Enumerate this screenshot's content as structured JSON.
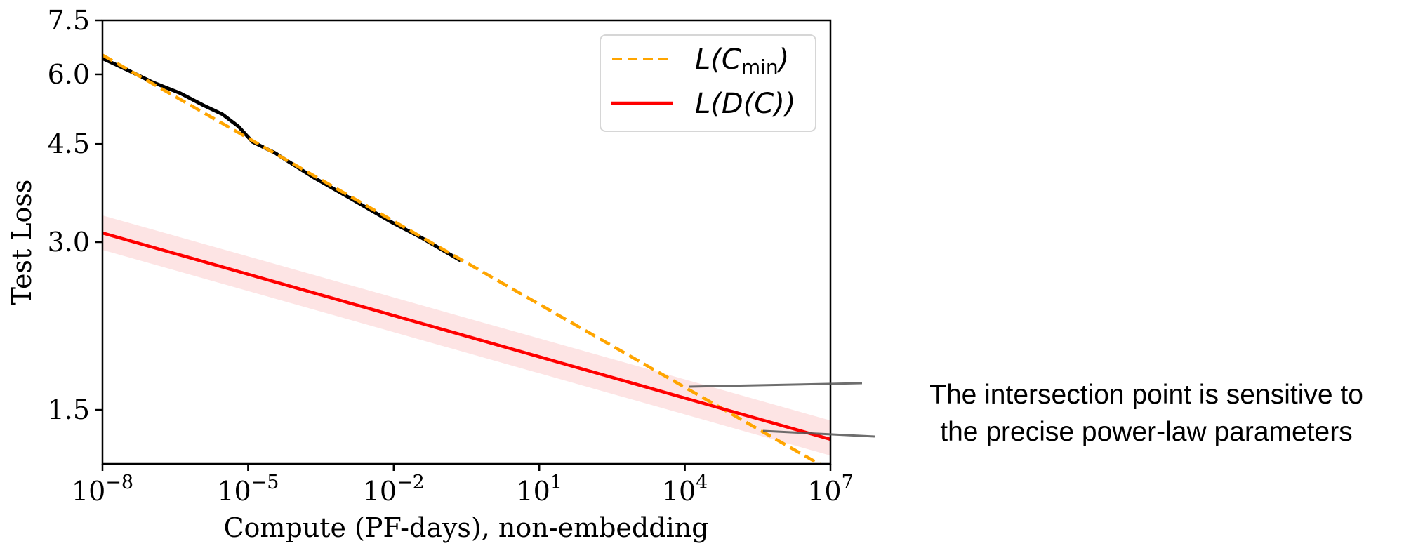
{
  "chart_data": {
    "type": "line",
    "title": "",
    "xlabel": "Compute (PF-days), non-embedding",
    "ylabel": "Test Loss",
    "xscale": "log",
    "yscale": "log",
    "xlim": [
      1e-08,
      10000000.0
    ],
    "ylim": [
      1.2,
      7.5
    ],
    "grid": false,
    "legend_position": "top-right",
    "x_ticks": [
      {
        "base": "10",
        "exp": "−8",
        "log10": -8
      },
      {
        "base": "10",
        "exp": "−5",
        "log10": -5
      },
      {
        "base": "10",
        "exp": "−2",
        "log10": -2
      },
      {
        "base": "10",
        "exp": "1",
        "log10": 1
      },
      {
        "base": "10",
        "exp": "4",
        "log10": 4
      },
      {
        "base": "10",
        "exp": "7",
        "log10": 7
      }
    ],
    "y_ticks": [
      {
        "value": 1.5,
        "label": "1.5"
      },
      {
        "value": 3.0,
        "label": "3.0"
      },
      {
        "value": 4.5,
        "label": "4.5"
      },
      {
        "value": 6.0,
        "label": "6.0"
      },
      {
        "value": 7.5,
        "label": "7.5"
      }
    ],
    "series": [
      {
        "name": "L(C_min)",
        "legend_main": "L(C",
        "legend_sub": "min",
        "legend_end": ")",
        "color": "#ffa500",
        "style": "dashed",
        "x": [
          1e-08,
          10000000.0
        ],
        "y": [
          6.5,
          1.168
        ]
      },
      {
        "name": "L(D(C))",
        "legend_main": "L(D(C))",
        "color": "#ff0000",
        "style": "solid",
        "x": [
          1e-08,
          10000000.0
        ],
        "y": [
          3.115,
          1.328
        ],
        "band_upper": [
          3.35,
          1.436
        ],
        "band_lower": [
          2.905,
          1.242
        ],
        "band_color": "#fde4e4"
      },
      {
        "color": "#000000",
        "style": "solid",
        "x": [
          1e-08,
          3.4e-08,
          1.07e-07,
          4e-07,
          1.2e-06,
          2.95e-06,
          6.3e-06,
          1.23e-05,
          3.7e-05,
          4.7e-05,
          0.000224,
          0.00132,
          0.0095,
          0.036,
          0.24
        ],
        "y": [
          6.41,
          6.1,
          5.81,
          5.55,
          5.28,
          5.09,
          4.84,
          4.54,
          4.33,
          4.27,
          3.92,
          3.59,
          3.25,
          3.06,
          2.78
        ]
      }
    ],
    "annotation": {
      "lines": [
        "The intersection point is sensitive to",
        "the precise power-law parameters"
      ],
      "color": "#555555"
    }
  }
}
